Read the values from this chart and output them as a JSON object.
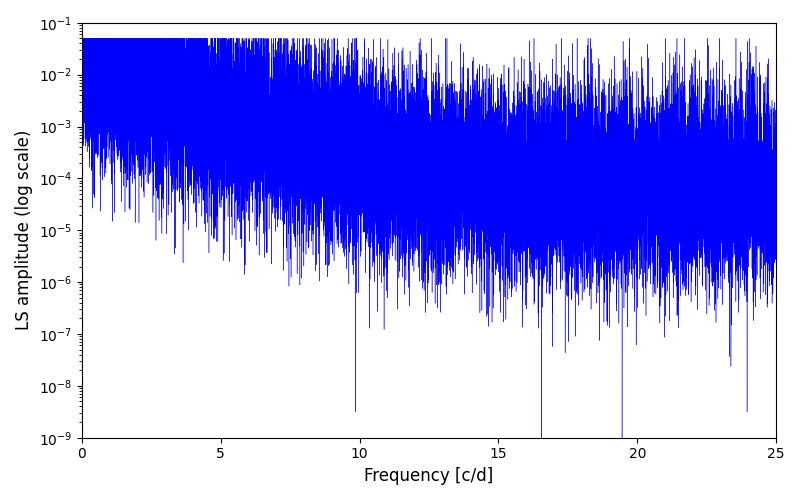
{
  "xlabel": "Frequency [c/d]",
  "ylabel": "LS amplitude (log scale)",
  "xlim": [
    0,
    25
  ],
  "ylim": [
    1e-09,
    0.1
  ],
  "line_color": "#0000ff",
  "line_width": 0.3,
  "num_points": 25000,
  "seed": 7,
  "freq_max": 25.0,
  "background_color": "#ffffff",
  "figsize": [
    8.0,
    5.0
  ],
  "dpi": 100,
  "envelope_peak": 0.018,
  "envelope_decay": 0.45,
  "envelope_floor": 7e-05,
  "noise_std": 0.9,
  "deep_spike_locs": [
    9.85,
    16.55,
    19.45,
    23.95
  ],
  "deep_spike_depths": [
    -8.5,
    -9.2,
    -9.5,
    -8.5
  ]
}
